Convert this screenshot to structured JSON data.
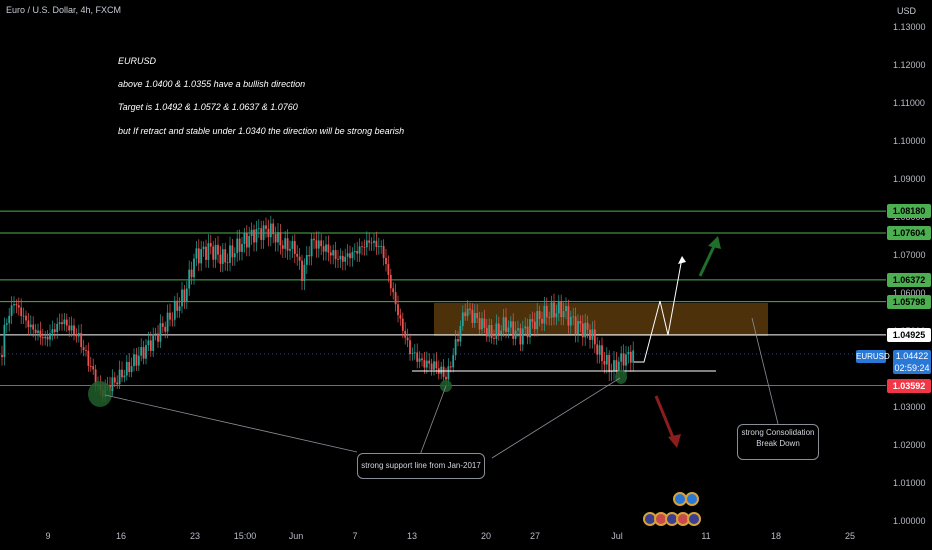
{
  "header": {
    "title": "Euro / U.S. Dollar, 4h, FXCM",
    "currency": "USD"
  },
  "notes": {
    "symbol": "EURUSD",
    "line1": "above 1.0400 & 1.0355  have a bullish direction",
    "line2": "Target is  1.0492 & 1.0572  & 1.0637 & 1.0760",
    "line3": "but If retract and stable under 1.0340 the direction will be strong bearish"
  },
  "price_axis": {
    "labels": [
      "1.13000",
      "1.12000",
      "1.11000",
      "1.10000",
      "1.09000",
      "1.08000",
      "1.07000",
      "1.06000",
      "1.05000",
      "1.04000",
      "1.03000",
      "1.02000",
      "1.01000",
      "1.00000"
    ]
  },
  "time_axis": {
    "labels": [
      "9",
      "16",
      "23",
      "15:00",
      "Jun",
      "7",
      "13",
      "20",
      "27",
      "Jul",
      "11",
      "18",
      "25"
    ]
  },
  "levels": [
    {
      "value": "1.08180",
      "color": "#4caf50"
    },
    {
      "value": "1.07604",
      "color": "#4caf50"
    },
    {
      "value": "1.06372",
      "color": "#4caf50"
    },
    {
      "value": "1.05798",
      "color": "#4caf50"
    },
    {
      "value": "1.04925",
      "color": "#ffffff"
    },
    {
      "value": "1.03592",
      "color": "#f23645"
    }
  ],
  "current": {
    "symbol": "EURUSD",
    "price": "1.04422",
    "countdown": "02:59:24"
  },
  "callouts": {
    "support": "strong support line from Jan-2017",
    "consolidation": "strong Consolidation Break Down"
  },
  "colors": {
    "up": "#26a69a",
    "down": "#ef5350",
    "zone": "#8a5a12",
    "accent": "#2a78d6"
  }
}
